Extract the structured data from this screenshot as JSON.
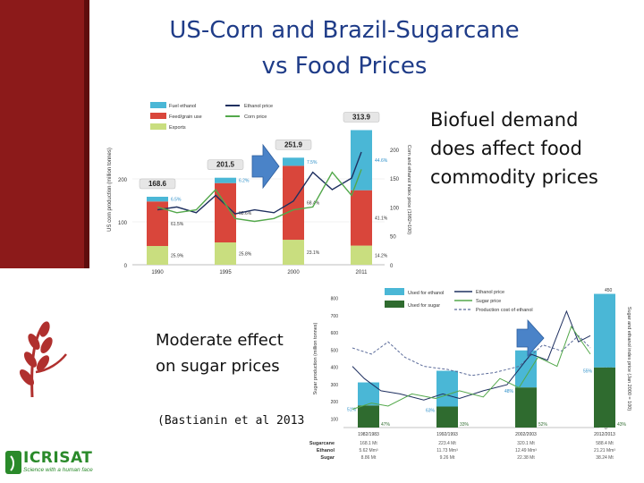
{
  "slide": {
    "title_line1": "US-Corn and Brazil-Sugarcane",
    "title_line2": "vs Food Prices",
    "note_line1": "Biofuel demand",
    "note_line2": "does affect food",
    "note_line3": "commodity prices",
    "moderate_line1": "Moderate effect",
    "moderate_line2": "on sugar prices",
    "citation": "(Bastianin et al 2013)"
  },
  "logo": {
    "name": "ICRISAT",
    "tagline": "Science with a human face"
  },
  "colors": {
    "title": "#1f3c88",
    "red_band": "#8c1a1a",
    "fuel": "#4ab7d6",
    "feed": "#d9463b",
    "exports": "#c9de7f",
    "sugar_dark": "#2f6b2f",
    "arrow": "#4a83c8",
    "ethanol_line": "#1f3060",
    "corn_line": "#53a84b"
  },
  "chart_data": [
    {
      "type": "bar",
      "legend": [
        "Fuel ethanol",
        "Feed/grain use",
        "Exports",
        "Ethanol price",
        "Corn price"
      ],
      "categories": [
        "1990",
        "1995",
        "2000",
        "2011"
      ],
      "totals": [
        168.6,
        201.5,
        251.9,
        313.9
      ],
      "series": [
        {
          "name": "Exports",
          "percent": [
            "25.9%",
            "25.8%",
            "23.1%",
            "14.2%"
          ],
          "values": [
            43.7,
            52.0,
            58.2,
            44.6
          ]
        },
        {
          "name": "Feed/grain use",
          "percent": [
            "61.5%",
            "68.6%",
            "68.4%",
            "41.1%"
          ],
          "values": [
            103.7,
            138.2,
            172.3,
            129.0
          ]
        },
        {
          "name": "Fuel ethanol",
          "percent": [
            "6.5%",
            "6.2%",
            "7.5%",
            "44.6%"
          ],
          "values": [
            11.0,
            12.5,
            18.9,
            140.0
          ]
        }
      ],
      "ylabel": "US corn production (million tonnes)",
      "y2label": "Corn and ethanol index price (1982=100)",
      "ylim": [
        0,
        350
      ],
      "y_ticks": [
        "0",
        "100",
        "200"
      ],
      "y2_ticks": [
        "0",
        "50",
        "100",
        "150",
        "200"
      ],
      "lines": [
        {
          "name": "Ethanol price",
          "x": [
            1990,
            1992,
            1994,
            1996,
            1998,
            2000,
            2002,
            2004,
            2006,
            2008,
            2010,
            2011
          ],
          "y": [
            95,
            100,
            90,
            120,
            88,
            95,
            90,
            110,
            160,
            130,
            150,
            195
          ]
        },
        {
          "name": "Corn price",
          "x": [
            1990,
            1992,
            1994,
            1996,
            1998,
            2000,
            2002,
            2004,
            2006,
            2008,
            2010,
            2011
          ],
          "y": [
            100,
            90,
            95,
            130,
            80,
            75,
            80,
            95,
            100,
            160,
            120,
            165
          ]
        }
      ]
    },
    {
      "type": "bar",
      "legend": [
        "Used for ethanol",
        "Used for sugar",
        "Ethanol price",
        "Sugar price",
        "Production cost of ethanol"
      ],
      "categories": [
        "1982/1983",
        "1992/1993",
        "2002/2003",
        "2012/2013"
      ],
      "ylabel": "Sugar production (million tonnes)",
      "y2label": "Sugar and ethanol index price (Jan 2000 = 100)",
      "ylim": [
        0,
        750
      ],
      "y_ticks": [
        "100",
        "200",
        "300",
        "400",
        "500",
        "600",
        "700",
        "800"
      ],
      "y2_ticks": [
        "0",
        "50",
        "100",
        "150",
        "200",
        "250",
        "300",
        "350",
        "400",
        "450"
      ],
      "sugar_pct": [
        "47%",
        "33%",
        "52%",
        "43%"
      ],
      "ethanol_pct": [
        "51%",
        "63%",
        "48%",
        "55%"
      ],
      "sugarcane": [
        "168.1 Mt",
        "223.4 Mt",
        "320.1 Mt",
        "588.4 Mt"
      ],
      "ethanol": [
        "5.62 Mm³",
        "11.73 Mm³",
        "12.49 Mm³",
        "21.21 Mm³"
      ],
      "sugar": [
        "8.86 Mt",
        "9.26 Mt",
        "22.38 Mt",
        "38.24 Mt"
      ],
      "row_labels": [
        "Sugarcane",
        "Ethanol",
        "Sugar"
      ]
    }
  ]
}
